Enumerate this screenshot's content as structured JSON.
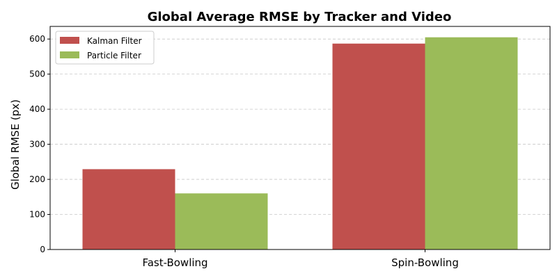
{
  "chart_data": {
    "type": "bar",
    "title": "Global Average RMSE by Tracker and Video",
    "xlabel": "",
    "ylabel": "Global RMSE (px)",
    "categories": [
      "Fast-Bowling",
      "Spin-Bowling"
    ],
    "series": [
      {
        "name": "Kalman Filter",
        "color": "#c0504d",
        "values": [
          229,
          587
        ]
      },
      {
        "name": "Particle Filter",
        "color": "#9bbb59",
        "values": [
          160,
          605
        ]
      }
    ],
    "ylim": [
      0,
      636
    ],
    "yticks": [
      "0",
      "100",
      "200",
      "300",
      "400",
      "500",
      "600"
    ],
    "grid": "y-dashed",
    "legend_position": "top-left"
  }
}
